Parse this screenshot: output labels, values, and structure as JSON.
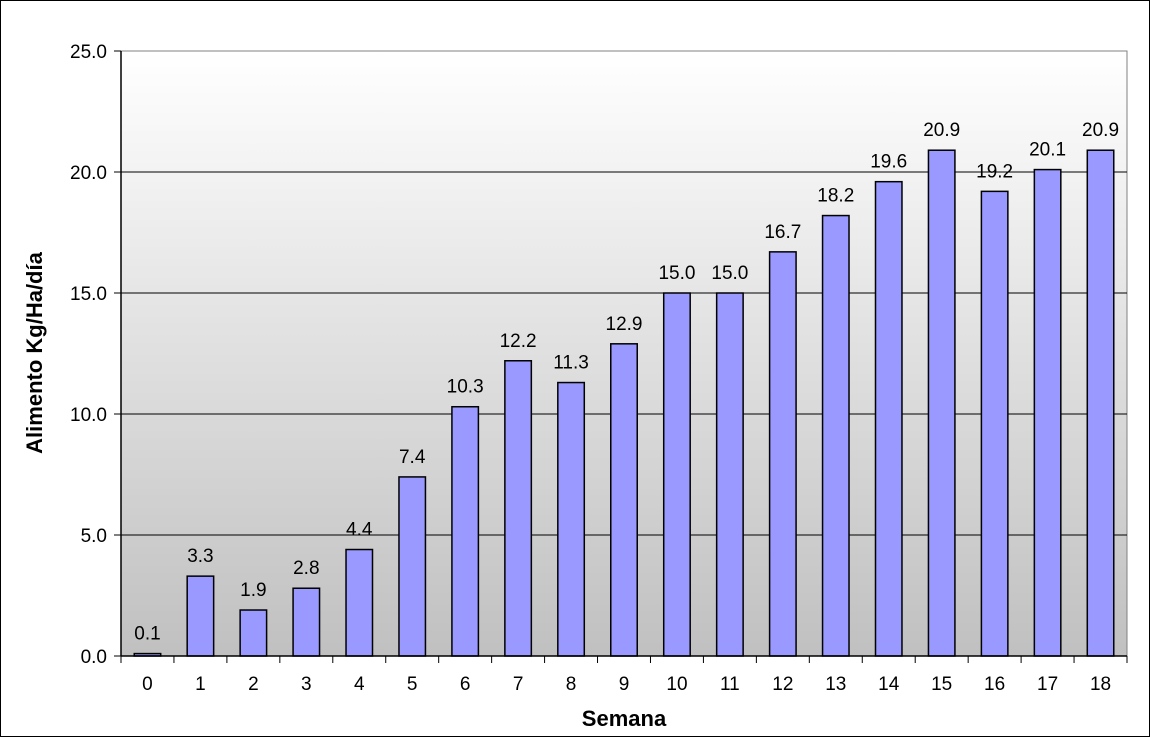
{
  "chart_data": {
    "type": "bar",
    "title": "",
    "xlabel": "Semana",
    "ylabel": "Alimento Kg/Ha/día",
    "categories": [
      "0",
      "1",
      "2",
      "3",
      "4",
      "5",
      "6",
      "7",
      "8",
      "9",
      "10",
      "11",
      "12",
      "13",
      "14",
      "15",
      "16",
      "17",
      "18"
    ],
    "values": [
      0.1,
      3.3,
      1.9,
      2.8,
      4.4,
      7.4,
      10.3,
      12.2,
      11.3,
      12.9,
      15.0,
      15.0,
      16.7,
      18.2,
      19.6,
      20.9,
      19.2,
      20.1,
      20.9
    ],
    "data_labels": [
      "0.1",
      "3.3",
      "1.9",
      "2.8",
      "4.4",
      "7.4",
      "10.3",
      "12.2",
      "11.3",
      "12.9",
      "15.0",
      "15.0",
      "16.7",
      "18.2",
      "19.6",
      "20.9",
      "19.2",
      "20.1",
      "20.9"
    ],
    "ylim": [
      0,
      25
    ],
    "yticks": [
      0,
      5,
      10,
      15,
      20,
      25
    ],
    "ytick_labels": [
      "0.0",
      "5.0",
      "10.0",
      "15.0",
      "20.0",
      "25.0"
    ],
    "grid": true,
    "legend": "none",
    "colors": {
      "bar_fill": "#9999ff",
      "bar_stroke": "#000000",
      "plot_bg_top": "#ffffff",
      "plot_bg_bottom": "#c0c0c0",
      "gridline": "#000000"
    }
  }
}
